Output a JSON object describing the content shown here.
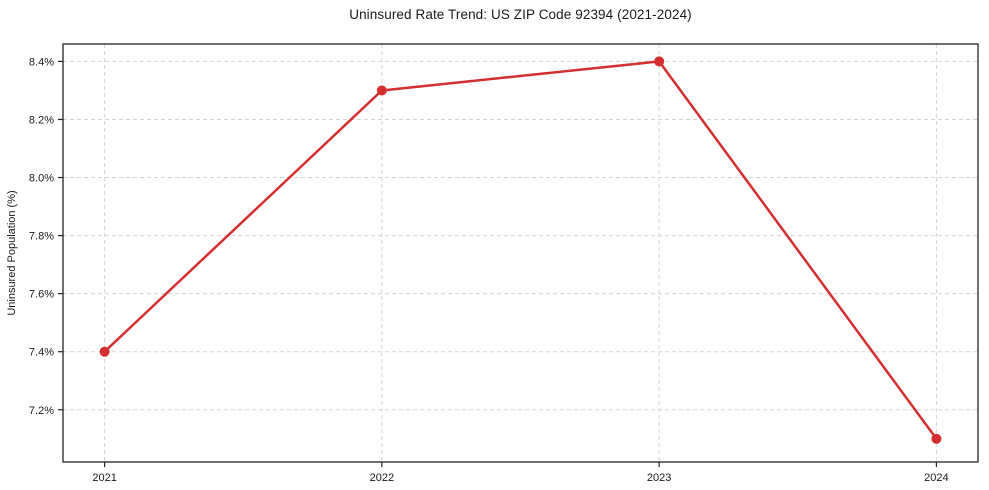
{
  "chart_data": {
    "type": "line",
    "title": "Uninsured Rate Trend: US ZIP Code 92394 (2021-2024)",
    "xlabel": "",
    "ylabel": "Uninsured Population (%)",
    "x": [
      2021,
      2022,
      2023,
      2024
    ],
    "values": [
      7.4,
      8.3,
      8.4,
      7.1
    ],
    "x_tick_labels": [
      "2021",
      "2022",
      "2023",
      "2024"
    ],
    "x_ticks": [
      2021,
      2022,
      2023,
      2024
    ],
    "y_ticks": [
      7.2,
      7.4,
      7.6,
      7.8,
      8.0,
      8.2,
      8.4
    ],
    "y_tick_labels": [
      "7.2%",
      "7.4%",
      "7.6%",
      "7.8%",
      "8.0%",
      "8.2%",
      "8.4%"
    ],
    "xlim": [
      2020.85,
      2024.15
    ],
    "ylim": [
      7.02,
      8.46
    ],
    "grid": true,
    "grid_style": "dashed",
    "legend": false,
    "colors": {
      "line": "#d32f2f",
      "marker": "#d32f2f",
      "grid": "#cccccc",
      "spine": "#222222",
      "tick": "#222222",
      "text": "#1a1a1a",
      "background": "#ffffff"
    }
  }
}
